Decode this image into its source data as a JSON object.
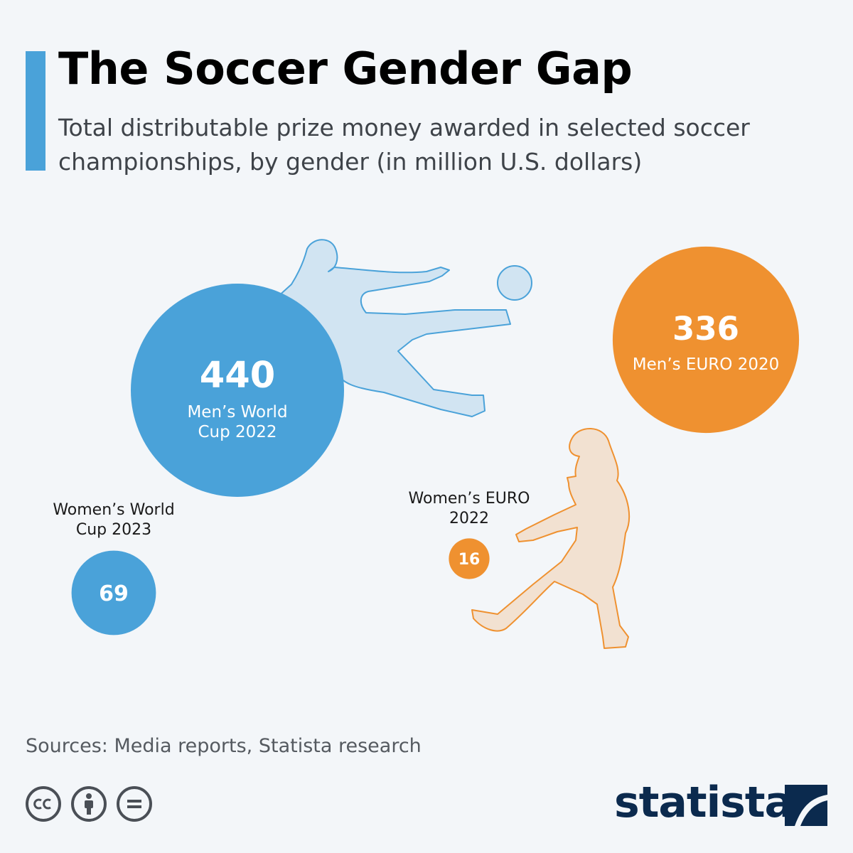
{
  "header": {
    "title": "The Soccer Gender Gap",
    "subtitle": "Total distributable prize money awarded in selected soccer championships, by gender (in million U.S. dollars)"
  },
  "colors": {
    "blue": "#4aa2d9",
    "orange": "#ef9130",
    "accent": "#4aa2d9"
  },
  "chart_data": {
    "type": "bubble",
    "title": "The Soccer Gender Gap",
    "unit": "million U.S. dollars",
    "points": [
      {
        "label": "Men’s World Cup 2022",
        "label_lines": [
          "Men’s World",
          "Cup 2022"
        ],
        "value": 440,
        "gender": "men",
        "color": "#4aa2d9"
      },
      {
        "label": "Men’s EURO 2020",
        "label_lines": [
          "Men’s EURO 2020"
        ],
        "value": 336,
        "gender": "men",
        "color": "#ef9130"
      },
      {
        "label": "Women’s World Cup 2023",
        "label_lines": [
          "Women’s World",
          "Cup 2023"
        ],
        "value": 69,
        "gender": "women",
        "color": "#4aa2d9"
      },
      {
        "label": "Women’s EURO 2022",
        "label_lines": [
          "Women’s EURO",
          "2022"
        ],
        "value": 16,
        "gender": "women",
        "color": "#ef9130"
      }
    ]
  },
  "footer": {
    "source": "Sources: Media reports, Statista research",
    "license_icons": [
      "cc-icon",
      "attribution-icon",
      "no-derivatives-icon"
    ],
    "brand": "statista"
  }
}
